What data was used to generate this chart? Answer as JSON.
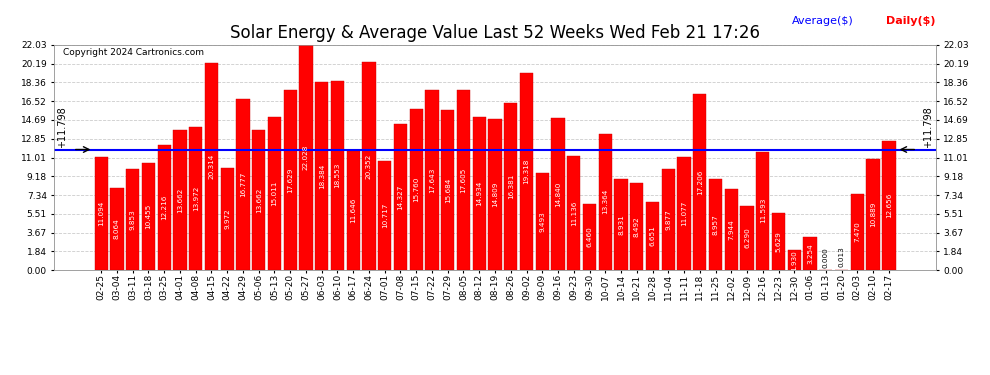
{
  "title": "Solar Energy & Average Value Last 52 Weeks Wed Feb 21 17:26",
  "copyright": "Copyright 2024 Cartronics.com",
  "average_label": "Average($)",
  "daily_label": "Daily($)",
  "average_value": 11.798,
  "categories": [
    "02-25",
    "03-04",
    "03-11",
    "03-18",
    "03-25",
    "04-01",
    "04-08",
    "04-15",
    "04-22",
    "04-29",
    "05-06",
    "05-13",
    "05-20",
    "05-27",
    "06-03",
    "06-10",
    "06-17",
    "06-24",
    "07-01",
    "07-08",
    "07-15",
    "07-22",
    "07-29",
    "08-05",
    "08-12",
    "08-19",
    "08-26",
    "09-02",
    "09-09",
    "09-16",
    "09-23",
    "09-30",
    "10-07",
    "10-14",
    "10-21",
    "10-28",
    "11-04",
    "11-11",
    "11-18",
    "11-25",
    "12-02",
    "12-09",
    "12-16",
    "12-23",
    "12-30",
    "01-06",
    "01-13",
    "01-20",
    "02-03",
    "02-10",
    "02-17"
  ],
  "values": [
    11.094,
    8.064,
    9.853,
    10.455,
    12.216,
    13.662,
    13.972,
    20.314,
    9.972,
    16.777,
    13.662,
    15.011,
    17.629,
    22.028,
    18.384,
    18.553,
    11.646,
    20.352,
    10.717,
    14.327,
    15.76,
    17.643,
    15.684,
    17.605,
    14.934,
    14.809,
    16.381,
    19.318,
    9.493,
    14.84,
    11.136,
    6.46,
    13.364,
    8.931,
    8.492,
    6.651,
    9.877,
    11.077,
    17.206,
    8.957,
    7.944,
    6.29,
    11.593,
    5.629,
    1.93,
    3.254,
    0.0,
    0.013,
    7.47,
    10.889,
    12.656
  ],
  "bar_color": "#ff0000",
  "bar_edge_color": "#cc0000",
  "average_line_color": "#0000ff",
  "background_color": "#ffffff",
  "grid_color": "#cccccc",
  "ylim_max": 22.03,
  "yticks": [
    0.0,
    1.84,
    3.67,
    5.51,
    7.34,
    9.18,
    11.01,
    12.85,
    14.69,
    16.52,
    18.36,
    20.19,
    22.03
  ],
  "title_fontsize": 12,
  "tick_fontsize": 6.5,
  "bar_label_fontsize": 5.2
}
